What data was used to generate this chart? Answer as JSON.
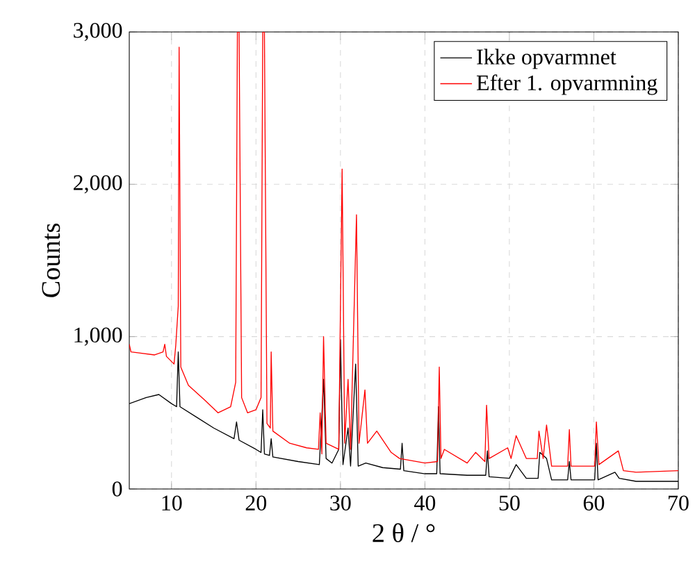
{
  "chart_data": {
    "type": "line",
    "xlabel": "2 θ / °",
    "ylabel": "Counts",
    "xlim": [
      5,
      70
    ],
    "ylim": [
      0,
      3000
    ],
    "xticks": [
      10,
      20,
      30,
      40,
      50,
      60,
      70
    ],
    "yticks": [
      {
        "value": 0,
        "label": "0"
      },
      {
        "value": 1000,
        "label": "1,000"
      },
      {
        "value": 2000,
        "label": "2,000"
      },
      {
        "value": 3000,
        "label": "3,000"
      }
    ],
    "grid": true,
    "legend": "top right",
    "marker": "none",
    "line_style": "solid",
    "series": [
      {
        "name": "Ikke opvarmnet",
        "color": "#000000",
        "x": [
          5,
          7,
          8.5,
          10,
          10.6,
          10.8,
          11.0,
          13,
          15,
          17.4,
          17.7,
          18.0,
          20,
          20.6,
          20.8,
          21.0,
          21.6,
          21.8,
          22.0,
          25,
          27.5,
          27.8,
          28.0,
          28.3,
          29,
          29.8,
          30.0,
          30.3,
          30.9,
          31.2,
          31.8,
          32.1,
          33,
          35,
          37.1,
          37.3,
          37.5,
          40,
          41.4,
          41.6,
          41.8,
          45,
          47.2,
          47.4,
          47.6,
          50,
          50.8,
          52,
          53.4,
          53.6,
          54.4,
          55,
          56.9,
          57.1,
          57.3,
          60.1,
          60.3,
          60.5,
          62.5,
          63,
          65,
          70
        ],
        "values": [
          560,
          600,
          620,
          560,
          540,
          900,
          540,
          470,
          400,
          330,
          440,
          320,
          260,
          240,
          520,
          230,
          220,
          330,
          210,
          180,
          160,
          480,
          720,
          200,
          170,
          260,
          980,
          160,
          400,
          150,
          820,
          150,
          170,
          140,
          130,
          300,
          120,
          100,
          100,
          540,
          100,
          90,
          90,
          250,
          80,
          70,
          160,
          70,
          70,
          240,
          200,
          60,
          60,
          180,
          60,
          60,
          300,
          60,
          110,
          70,
          50,
          50
        ]
      },
      {
        "name": "Efter 1. opvarmning",
        "color": "#ff0000",
        "x": [
          5,
          5.2,
          8,
          9,
          9.2,
          9.4,
          10.3,
          10.5,
          10.8,
          10.9,
          11.1,
          12,
          14,
          15.5,
          17,
          17.6,
          17.8,
          18.0,
          18.3,
          19,
          20,
          20.6,
          20.8,
          21.0,
          21.3,
          21.7,
          21.8,
          22.0,
          24,
          26,
          27.4,
          27.6,
          27.8,
          28.0,
          28.3,
          29.8,
          30.2,
          30.5,
          30.9,
          31.2,
          31.9,
          32.2,
          32.9,
          33.2,
          34.3,
          36,
          37,
          40,
          41.5,
          41.7,
          41.9,
          42.3,
          45,
          46,
          47.1,
          47.3,
          47.6,
          49.8,
          50.2,
          50.8,
          52,
          53.3,
          53.5,
          54,
          54.4,
          55,
          56.9,
          57.1,
          57.3,
          60.1,
          60.3,
          60.6,
          62.9,
          63.5,
          65,
          70
        ],
        "values": [
          950,
          900,
          880,
          900,
          950,
          870,
          820,
          940,
          1200,
          2900,
          800,
          680,
          580,
          500,
          540,
          700,
          3000,
          3000,
          600,
          500,
          520,
          600,
          3000,
          3000,
          430,
          400,
          900,
          380,
          300,
          270,
          260,
          500,
          230,
          1000,
          300,
          260,
          2100,
          300,
          720,
          260,
          1800,
          300,
          650,
          300,
          380,
          240,
          200,
          170,
          180,
          800,
          200,
          260,
          170,
          240,
          180,
          550,
          200,
          270,
          200,
          350,
          200,
          200,
          380,
          200,
          420,
          150,
          150,
          390,
          150,
          150,
          440,
          160,
          250,
          120,
          110,
          120
        ]
      }
    ]
  }
}
